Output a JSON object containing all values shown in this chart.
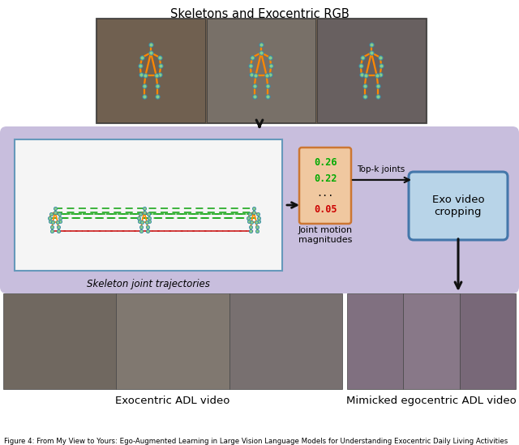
{
  "title": "Skeletons and Exocentric RGB",
  "caption": "Figure 4: From My View to Yours: Ego-Augmented Learning in Large Vision Language Models for Understanding Exocentric Daily Living Activities",
  "label_exo": "Exocentric ADL video",
  "label_ego": "Mimicked egocentric ADL video",
  "label_skeleton": "Skeleton joint trajectories",
  "label_joint": "Joint motion\nmagnitudes",
  "label_topk": "Top-k joints",
  "label_exo_crop": "Exo video\ncropping",
  "joint_values": [
    "0.26",
    "0.22",
    "...",
    "0.05"
  ],
  "joint_value_colors": [
    "#00aa00",
    "#00aa00",
    "#000000",
    "#cc0000"
  ],
  "bg_purple": "#c8bedd",
  "bg_white": "#ffffff",
  "bg_light_blue": "#b8d4e8",
  "bg_light_orange": "#f0c8a0",
  "skel_box_bg": "#f5f5f5",
  "skel_box_edge": "#6699bb",
  "arrow_color": "#111111",
  "orange_line": "#ff8800",
  "green_dashed": "#22aa22",
  "red_dashed": "#cc2222",
  "joint_dot_fill": "#88cc88",
  "joint_dot_edge": "#3388aa",
  "top_frame_colors": [
    "#706050",
    "#787068",
    "#686060"
  ],
  "bot_left_colors": [
    "#706860",
    "#807870",
    "#787070"
  ],
  "bot_right_colors": [
    "#807080",
    "#887888",
    "#786878"
  ],
  "figsize": [
    6.4,
    5.49
  ],
  "dpi": 100
}
